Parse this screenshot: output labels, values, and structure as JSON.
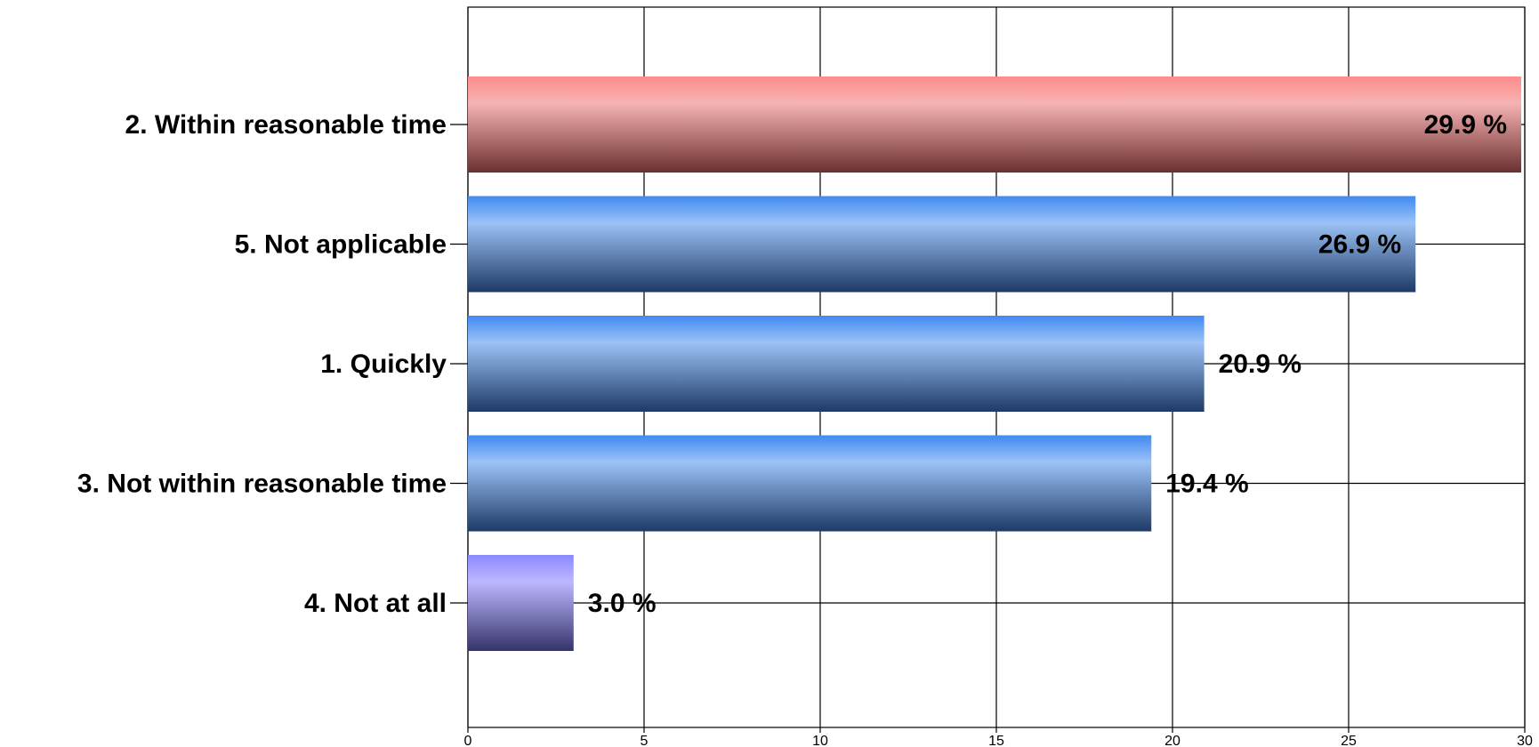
{
  "chart_data": {
    "type": "bar",
    "orientation": "horizontal",
    "categories": [
      "2. Within reasonable time",
      "5. Not applicable",
      "1. Quickly",
      "3. Not within reasonable time",
      "4. Not at all"
    ],
    "values": [
      29.9,
      26.9,
      20.9,
      19.4,
      3.0
    ],
    "data_labels": [
      "29.9 %",
      "26.9 %",
      "20.9 %",
      "19.4 %",
      "3.0 %"
    ],
    "bar_colors": [
      "red",
      "blue",
      "blue",
      "blue",
      "purple"
    ],
    "xlim": [
      0,
      30
    ],
    "x_ticks": [
      0,
      5,
      10,
      15,
      20,
      25,
      30
    ],
    "grid": true,
    "title": "",
    "xlabel": "",
    "ylabel": ""
  },
  "colors": {
    "red": {
      "light": "#ff8c8c",
      "mid": "#f6b3b3",
      "dark": "#6b2f2f"
    },
    "blue": {
      "light": "#3f8af2",
      "mid": "#9cc2f6",
      "dark": "#1e3a66"
    },
    "purple": {
      "light": "#8c88ff",
      "mid": "#bdb8ff",
      "dark": "#35336b"
    },
    "grid": "#000000"
  }
}
